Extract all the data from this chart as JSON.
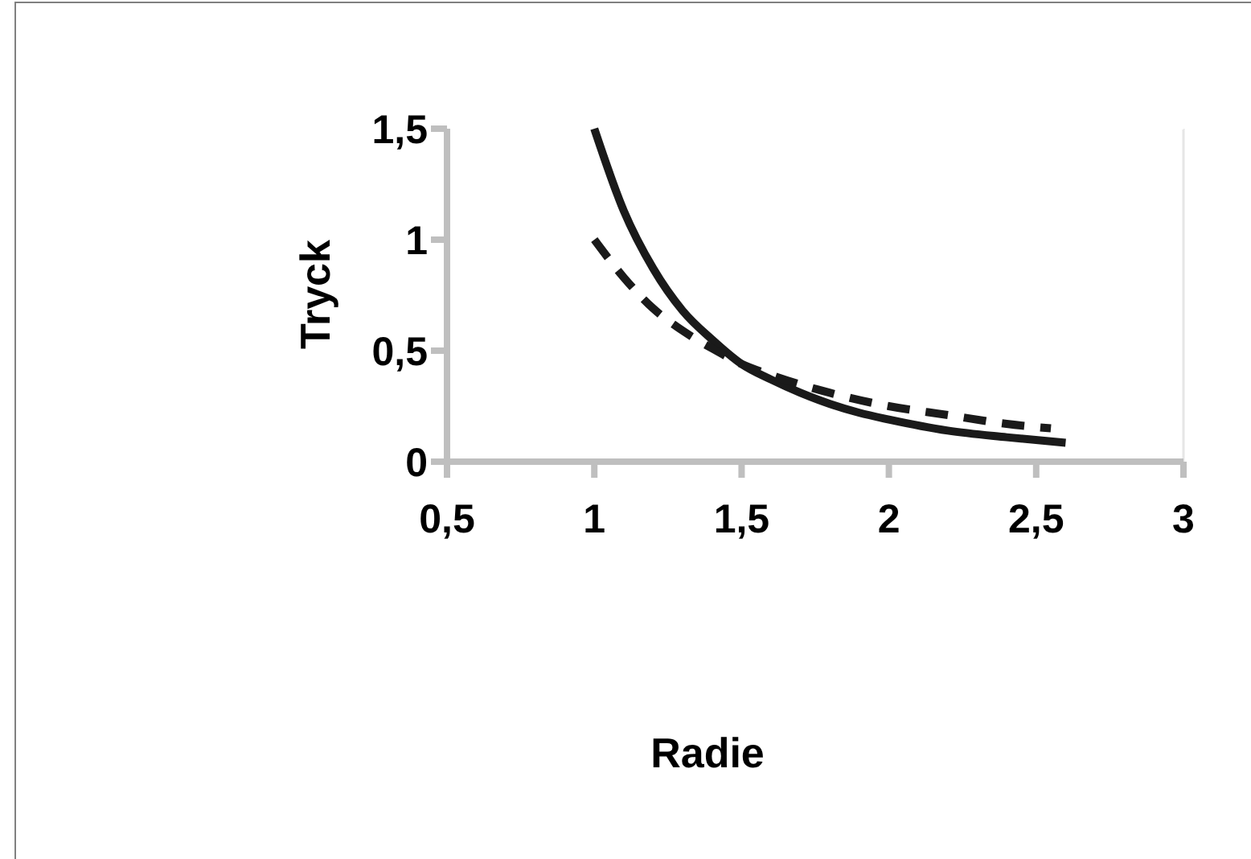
{
  "chart_data": {
    "type": "line",
    "xlabel": "Radie",
    "ylabel": "Tryck",
    "xlim": [
      0.5,
      3
    ],
    "ylim": [
      0,
      1.5
    ],
    "xticks": [
      {
        "value": 0.5,
        "label": "0,5"
      },
      1,
      {
        "value": 1.5,
        "label": "1,5"
      },
      2,
      {
        "value": 2.5,
        "label": "2,5"
      },
      3
    ],
    "yticks": [
      0,
      {
        "value": 0.5,
        "label": "0,5"
      },
      1,
      {
        "value": 1.5,
        "label": "1,5"
      }
    ],
    "grid": false,
    "marker": "none",
    "series": [
      {
        "color": "#1a1a1a",
        "line_style": "solid",
        "x": [
          1,
          1.1,
          1.2,
          1.3,
          1.4,
          1.5,
          1.6,
          1.7,
          1.8,
          1.9,
          2,
          2.2,
          2.4,
          2.6
        ],
        "values": [
          1.5,
          1.13,
          0.87,
          0.68,
          0.55,
          0.44,
          0.37,
          0.31,
          0.26,
          0.22,
          0.19,
          0.14,
          0.11,
          0.085
        ]
      },
      {
        "color": "#1a1a1a",
        "line_style": "dashed",
        "x": [
          1,
          1.1,
          1.2,
          1.3,
          1.4,
          1.5,
          1.6,
          1.8,
          2,
          2.2,
          2.4,
          2.55
        ],
        "values": [
          1,
          0.83,
          0.69,
          0.59,
          0.51,
          0.44,
          0.39,
          0.31,
          0.25,
          0.21,
          0.17,
          0.15
        ]
      }
    ]
  }
}
